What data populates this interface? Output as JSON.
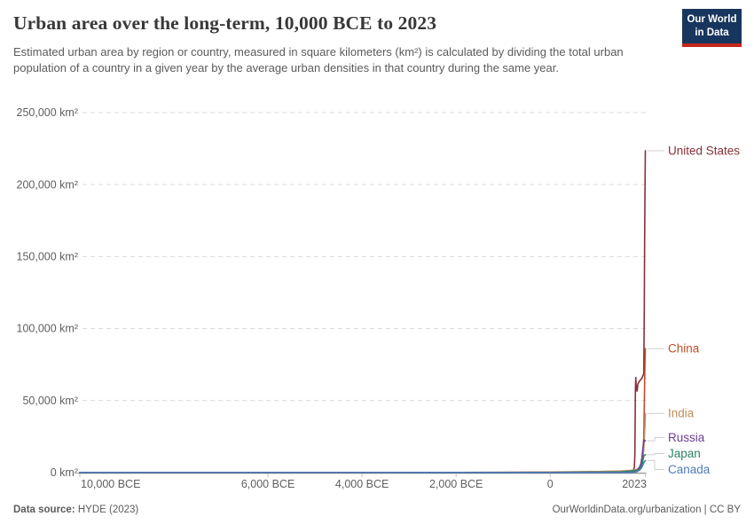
{
  "header": {
    "title": "Urban area over the long-term, 10,000 BCE to 2023",
    "subtitle": "Estimated urban area by region or country, measured in square kilometers (km²) is calculated by dividing the total urban population of a country in a given year by the average urban densities in that country during the same year.",
    "logo": {
      "line1": "Our World",
      "line2": "in Data",
      "bg_color": "#18365D",
      "accent_color": "#C4271B"
    }
  },
  "footer": {
    "source_label": "Data source:",
    "source_value": " HYDE (2023)",
    "right_text": "OurWorldinData.org/urbanization | CC BY"
  },
  "chart_data": {
    "type": "line",
    "title": "Urban area over the long-term, 10,000 BCE to 2023",
    "x_axis": {
      "range": [
        -10000,
        2023
      ],
      "ticks": [
        {
          "year": -10000,
          "label": "10,000 BCE"
        },
        {
          "year": -6000,
          "label": "6,000 BCE"
        },
        {
          "year": -4000,
          "label": "4,000 BCE"
        },
        {
          "year": -2000,
          "label": "2,000 BCE"
        },
        {
          "year": 0,
          "label": "0"
        },
        {
          "year": 2023,
          "label": "2023"
        }
      ]
    },
    "y_axis": {
      "range": [
        0,
        250000
      ],
      "unit": "km²",
      "ticks": [
        0,
        50000,
        100000,
        150000,
        200000,
        250000
      ],
      "gridlines": "dashed"
    },
    "legend_position": "right-end-labels",
    "series": [
      {
        "name": "United States",
        "color": "#883039",
        "points": [
          [
            -10000,
            0
          ],
          [
            -5000,
            0
          ],
          [
            -2000,
            5
          ],
          [
            -1000,
            10
          ],
          [
            0,
            20
          ],
          [
            500,
            25
          ],
          [
            1000,
            30
          ],
          [
            1400,
            45
          ],
          [
            1600,
            90
          ],
          [
            1700,
            250
          ],
          [
            1760,
            900
          ],
          [
            1790,
            3500
          ],
          [
            1800,
            12000
          ],
          [
            1812,
            58000
          ],
          [
            1820,
            66000
          ],
          [
            1830,
            58500
          ],
          [
            1848,
            56500
          ],
          [
            1865,
            61500
          ],
          [
            1900,
            63500
          ],
          [
            1950,
            65500
          ],
          [
            1990,
            68500
          ],
          [
            2000,
            110000
          ],
          [
            2008,
            160000
          ],
          [
            2015,
            192000
          ],
          [
            2023,
            223500
          ]
        ]
      },
      {
        "name": "China",
        "color": "#BE4E24",
        "points": [
          [
            -10000,
            0
          ],
          [
            -5000,
            3
          ],
          [
            -3000,
            10
          ],
          [
            -2000,
            25
          ],
          [
            -1000,
            70
          ],
          [
            0,
            260
          ],
          [
            500,
            360
          ],
          [
            1000,
            550
          ],
          [
            1400,
            800
          ],
          [
            1600,
            1050
          ],
          [
            1700,
            1250
          ],
          [
            1800,
            1650
          ],
          [
            1850,
            1850
          ],
          [
            1900,
            2600
          ],
          [
            1930,
            3600
          ],
          [
            1950,
            5500
          ],
          [
            1965,
            7500
          ],
          [
            1975,
            10500
          ],
          [
            1985,
            17000
          ],
          [
            1995,
            33000
          ],
          [
            2005,
            56000
          ],
          [
            2015,
            76000
          ],
          [
            2023,
            86000
          ]
        ]
      },
      {
        "name": "India",
        "color": "#BC8E5A",
        "points": [
          [
            -10000,
            0
          ],
          [
            -5000,
            3
          ],
          [
            -3000,
            15
          ],
          [
            -2000,
            35
          ],
          [
            -1000,
            90
          ],
          [
            0,
            310
          ],
          [
            500,
            420
          ],
          [
            1000,
            620
          ],
          [
            1400,
            850
          ],
          [
            1600,
            1100
          ],
          [
            1700,
            1400
          ],
          [
            1800,
            1750
          ],
          [
            1850,
            2100
          ],
          [
            1900,
            3600
          ],
          [
            1930,
            5200
          ],
          [
            1950,
            8200
          ],
          [
            1970,
            11200
          ],
          [
            1985,
            15500
          ],
          [
            1995,
            19500
          ],
          [
            2005,
            26500
          ],
          [
            2015,
            33500
          ],
          [
            2023,
            41000
          ]
        ]
      },
      {
        "name": "Russia",
        "color": "#6D3E91",
        "points": [
          [
            -10000,
            0
          ],
          [
            -1000,
            5
          ],
          [
            0,
            15
          ],
          [
            1000,
            60
          ],
          [
            1500,
            170
          ],
          [
            1700,
            450
          ],
          [
            1800,
            950
          ],
          [
            1850,
            1600
          ],
          [
            1900,
            3600
          ],
          [
            1930,
            6200
          ],
          [
            1950,
            10200
          ],
          [
            1970,
            16200
          ],
          [
            1980,
            19200
          ],
          [
            1990,
            22600
          ],
          [
            2000,
            21600
          ],
          [
            2010,
            21800
          ],
          [
            2023,
            22000
          ]
        ]
      },
      {
        "name": "Japan",
        "color": "#2C8465",
        "points": [
          [
            -10000,
            0
          ],
          [
            0,
            25
          ],
          [
            800,
            120
          ],
          [
            1200,
            250
          ],
          [
            1500,
            380
          ],
          [
            1700,
            900
          ],
          [
            1800,
            1150
          ],
          [
            1850,
            1350
          ],
          [
            1900,
            2300
          ],
          [
            1930,
            3700
          ],
          [
            1950,
            5100
          ],
          [
            1970,
            8300
          ],
          [
            1990,
            11200
          ],
          [
            2005,
            12000
          ],
          [
            2023,
            12300
          ]
        ]
      },
      {
        "name": "Canada",
        "color": "#4C7CB8",
        "points": [
          [
            -10000,
            0
          ],
          [
            1500,
            3
          ],
          [
            1700,
            60
          ],
          [
            1800,
            230
          ],
          [
            1850,
            650
          ],
          [
            1900,
            1600
          ],
          [
            1930,
            2600
          ],
          [
            1950,
            3600
          ],
          [
            1970,
            5100
          ],
          [
            1990,
            6600
          ],
          [
            2005,
            7400
          ],
          [
            2015,
            7900
          ],
          [
            2023,
            8200
          ]
        ]
      }
    ]
  }
}
